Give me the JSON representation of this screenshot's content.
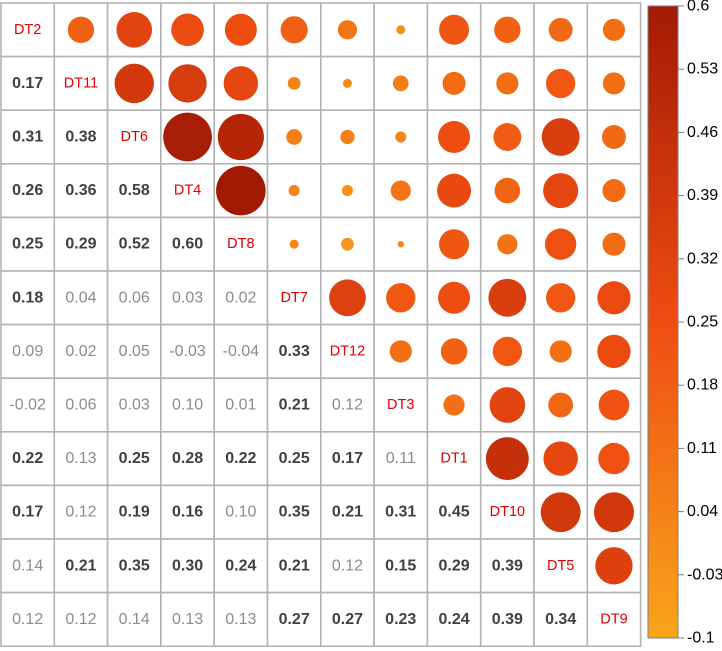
{
  "chart_data": {
    "type": "heatmap",
    "variables": [
      "DT2",
      "DT11",
      "DT6",
      "DT4",
      "DT8",
      "DT7",
      "DT12",
      "DT3",
      "DT1",
      "DT10",
      "DT5",
      "DT9"
    ],
    "lower_triangle_values": [
      [],
      [
        0.17
      ],
      [
        0.31,
        0.38
      ],
      [
        0.26,
        0.36,
        0.58
      ],
      [
        0.25,
        0.29,
        0.52,
        0.6
      ],
      [
        0.18,
        0.04,
        0.06,
        0.03,
        0.02
      ],
      [
        0.09,
        0.02,
        0.05,
        -0.03,
        -0.04,
        0.33
      ],
      [
        -0.02,
        0.06,
        0.03,
        0.1,
        0.01,
        0.21,
        0.12
      ],
      [
        0.22,
        0.13,
        0.25,
        0.28,
        0.22,
        0.25,
        0.17,
        0.11
      ],
      [
        0.17,
        0.12,
        0.19,
        0.16,
        0.1,
        0.35,
        0.21,
        0.31,
        0.45
      ],
      [
        0.14,
        0.21,
        0.35,
        0.3,
        0.24,
        0.21,
        0.12,
        0.15,
        0.29,
        0.39
      ],
      [
        0.12,
        0.12,
        0.14,
        0.13,
        0.13,
        0.27,
        0.27,
        0.23,
        0.24,
        0.39,
        0.34
      ]
    ],
    "lower_triangle_labels": [
      [],
      [
        "0.17"
      ],
      [
        "0.31",
        "0.38"
      ],
      [
        "0.26",
        "0.36",
        "0.58"
      ],
      [
        "0.25",
        "0.29",
        "0.52",
        "0.60"
      ],
      [
        "0.18",
        "0.04",
        "0.06",
        "0.03",
        "0.02"
      ],
      [
        "0.09",
        "0.02",
        "0.05",
        "-0.03",
        "-0.04",
        "0.33"
      ],
      [
        "-0.02",
        "0.06",
        "0.03",
        "0.10",
        "0.01",
        "0.21",
        "0.12"
      ],
      [
        "0.22",
        "0.13",
        "0.25",
        "0.28",
        "0.22",
        "0.25",
        "0.17",
        "0.11"
      ],
      [
        "0.17",
        "0.12",
        "0.19",
        "0.16",
        "0.10",
        "0.35",
        "0.21",
        "0.31",
        "0.45"
      ],
      [
        "0.14",
        "0.21",
        "0.35",
        "0.30",
        "0.24",
        "0.21",
        "0.12",
        "0.15",
        "0.29",
        "0.39"
      ],
      [
        "0.12",
        "0.12",
        "0.14",
        "0.13",
        "0.13",
        "0.27",
        "0.27",
        "0.23",
        "0.24",
        "0.39",
        "0.34"
      ]
    ],
    "upper_triangle_display": "circles sized and colored by correlation",
    "diagonal_display": "variable names",
    "color_scale": {
      "range": [
        -0.1,
        0.6
      ],
      "colors": [
        "#f9a51b",
        "#ee4d12",
        "#a31a04"
      ],
      "ticks": [
        "0.6",
        "0.53",
        "0.46",
        "0.39",
        "0.32",
        "0.25",
        "0.18",
        "0.11",
        "0.04",
        "-0.03",
        "-0.1"
      ]
    },
    "colorbar_position": "right",
    "significance_threshold": 0.15,
    "colors": {
      "significant_text": "#404040",
      "nonsignificant_text": "#8c8c8c",
      "diagonal_label": "#e00000",
      "grid": "#b3b3b3"
    }
  }
}
